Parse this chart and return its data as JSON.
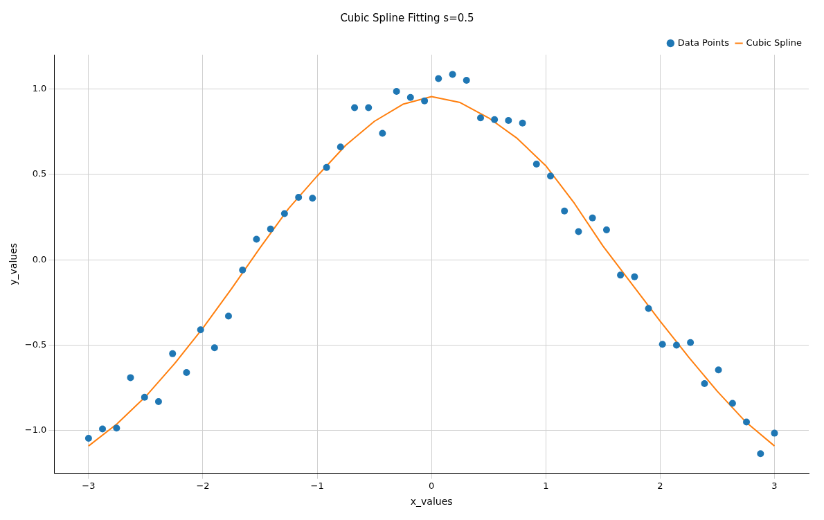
{
  "chart_data": {
    "type": "scatter",
    "title": "Cubic Spline Fitting s=0.5",
    "xlabel": "x_values",
    "ylabel": "y_values",
    "xlim": [
      -3.3,
      3.3
    ],
    "ylim": [
      -1.25,
      1.2
    ],
    "xticks": [
      {
        "value": -3,
        "label": "−3"
      },
      {
        "value": -2,
        "label": "−2"
      },
      {
        "value": -1,
        "label": "−1"
      },
      0,
      1,
      2,
      3
    ],
    "yticks": [
      {
        "value": -1,
        "label": "−1.0"
      },
      {
        "value": -0.5,
        "label": "−0.5"
      },
      {
        "value": 0,
        "label": "0.0"
      },
      {
        "value": 0.5,
        "label": "0.5"
      },
      {
        "value": 1,
        "label": "1.0"
      }
    ],
    "grid": true,
    "legend": "top right",
    "series": [
      {
        "name": "Data Points",
        "marker": "circle",
        "color": "#1f77b4",
        "x": [
          -3,
          -2.878,
          -2.755,
          -2.633,
          -2.51,
          -2.388,
          -2.265,
          -2.143,
          -2.02,
          -1.898,
          -1.776,
          -1.653,
          -1.531,
          -1.408,
          -1.286,
          -1.163,
          -1.041,
          -0.918,
          -0.796,
          -0.673,
          -0.551,
          -0.429,
          -0.306,
          -0.184,
          -0.061,
          0.061,
          0.184,
          0.306,
          0.429,
          0.551,
          0.673,
          0.796,
          0.918,
          1.041,
          1.163,
          1.286,
          1.408,
          1.531,
          1.653,
          1.776,
          1.898,
          2.02,
          2.143,
          2.265,
          2.388,
          2.51,
          2.633,
          2.755,
          2.878,
          3
        ],
        "values": [
          -1.045,
          -0.99,
          -0.985,
          -0.69,
          -0.805,
          -0.83,
          -0.55,
          -0.66,
          -0.41,
          -0.515,
          -0.33,
          -0.06,
          0.12,
          0.18,
          0.27,
          0.365,
          0.36,
          0.54,
          0.66,
          0.89,
          0.89,
          0.74,
          0.985,
          0.95,
          0.93,
          1.06,
          1.085,
          1.05,
          0.83,
          0.82,
          0.815,
          0.8,
          0.56,
          0.49,
          0.285,
          0.165,
          0.245,
          0.175,
          -0.09,
          -0.1,
          -0.285,
          -0.495,
          -0.5,
          -0.485,
          -0.725,
          -0.645,
          -0.84,
          -0.95,
          -1.135,
          -1.015
        ]
      },
      {
        "name": "Cubic Spline",
        "type": "line",
        "marker": "none",
        "line_style": "solid",
        "color": "#ff7f0e",
        "x": [
          -3,
          -2.75,
          -2.5,
          -2.25,
          -2,
          -1.75,
          -1.5,
          -1.25,
          -1,
          -0.75,
          -0.5,
          -0.25,
          0,
          0.25,
          0.5,
          0.75,
          1,
          1.25,
          1.5,
          1.75,
          2,
          2.25,
          2.5,
          2.75,
          3
        ],
        "values": [
          -1.09,
          -0.96,
          -0.8,
          -0.61,
          -0.4,
          -0.17,
          0.07,
          0.3,
          0.49,
          0.67,
          0.81,
          0.91,
          0.955,
          0.92,
          0.83,
          0.71,
          0.55,
          0.33,
          0.08,
          -0.14,
          -0.36,
          -0.57,
          -0.77,
          -0.95,
          -1.09
        ]
      }
    ]
  }
}
